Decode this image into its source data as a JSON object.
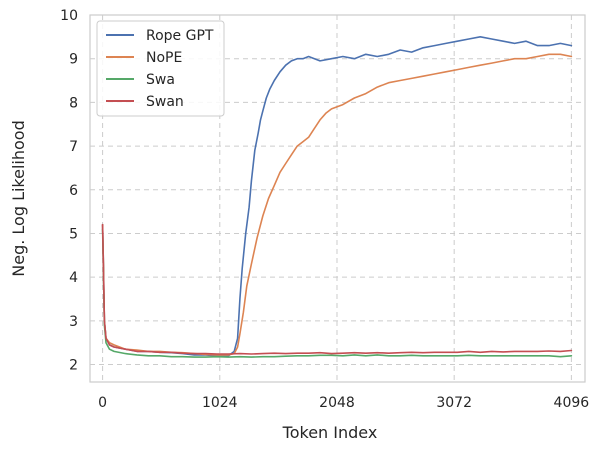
{
  "chart_data": {
    "type": "line",
    "title": "",
    "xlabel": "Token Index",
    "ylabel": "Neg. Log Likelihood",
    "xlim": [
      -110,
      4215
    ],
    "ylim": [
      1.6,
      10.0
    ],
    "xticks": [
      0,
      1024,
      2048,
      3072,
      4096
    ],
    "xtick_labels": [
      "0",
      "1024",
      "2048",
      "3072",
      "4096"
    ],
    "yticks": [
      2,
      3,
      4,
      5,
      6,
      7,
      8,
      9,
      10
    ],
    "ytick_labels": [
      "2",
      "3",
      "4",
      "5",
      "6",
      "7",
      "8",
      "9",
      "10"
    ],
    "grid": true,
    "grid_style": "dashed",
    "legend_position": "upper-left",
    "series": [
      {
        "name": "Rope GPT",
        "color": "#4c72b0",
        "x": [
          0,
          8,
          16,
          30,
          60,
          100,
          200,
          300,
          400,
          500,
          600,
          700,
          800,
          900,
          1000,
          1100,
          1150,
          1180,
          1200,
          1220,
          1250,
          1280,
          1300,
          1330,
          1360,
          1380,
          1400,
          1430,
          1460,
          1500,
          1550,
          1600,
          1650,
          1700,
          1750,
          1800,
          1900,
          2000,
          2100,
          2200,
          2300,
          2400,
          2500,
          2600,
          2700,
          2800,
          2900,
          3000,
          3100,
          3200,
          3300,
          3400,
          3500,
          3600,
          3700,
          3800,
          3900,
          4000,
          4096
        ],
        "y": [
          5.2,
          4.2,
          3.0,
          2.6,
          2.45,
          2.4,
          2.35,
          2.3,
          2.3,
          2.28,
          2.27,
          2.25,
          2.22,
          2.22,
          2.2,
          2.2,
          2.3,
          2.6,
          3.5,
          4.2,
          5.0,
          5.6,
          6.2,
          6.9,
          7.3,
          7.6,
          7.8,
          8.1,
          8.3,
          8.5,
          8.7,
          8.85,
          8.95,
          9.0,
          9.0,
          9.05,
          8.95,
          9.0,
          9.05,
          9.0,
          9.1,
          9.05,
          9.1,
          9.2,
          9.15,
          9.25,
          9.3,
          9.35,
          9.4,
          9.45,
          9.5,
          9.45,
          9.4,
          9.35,
          9.4,
          9.3,
          9.3,
          9.35,
          9.3
        ]
      },
      {
        "name": "NoPE",
        "color": "#dd8452",
        "x": [
          0,
          8,
          16,
          30,
          60,
          100,
          200,
          300,
          400,
          500,
          600,
          700,
          800,
          900,
          1000,
          1100,
          1150,
          1180,
          1200,
          1230,
          1260,
          1300,
          1350,
          1400,
          1450,
          1500,
          1550,
          1600,
          1650,
          1700,
          1750,
          1800,
          1850,
          1900,
          1950,
          2000,
          2100,
          2200,
          2300,
          2400,
          2500,
          2600,
          2700,
          2800,
          2900,
          3000,
          3100,
          3200,
          3300,
          3400,
          3500,
          3600,
          3700,
          3800,
          3900,
          4000,
          4096
        ],
        "y": [
          5.2,
          4.2,
          3.0,
          2.6,
          2.5,
          2.45,
          2.35,
          2.33,
          2.3,
          2.3,
          2.28,
          2.27,
          2.25,
          2.23,
          2.22,
          2.22,
          2.25,
          2.4,
          2.7,
          3.2,
          3.8,
          4.3,
          4.9,
          5.4,
          5.8,
          6.1,
          6.4,
          6.6,
          6.8,
          7.0,
          7.1,
          7.2,
          7.4,
          7.6,
          7.75,
          7.85,
          7.95,
          8.1,
          8.2,
          8.35,
          8.45,
          8.5,
          8.55,
          8.6,
          8.65,
          8.7,
          8.75,
          8.8,
          8.85,
          8.9,
          8.95,
          9.0,
          9.0,
          9.05,
          9.1,
          9.1,
          9.05
        ]
      },
      {
        "name": "Swa",
        "color": "#55a868",
        "x": [
          0,
          8,
          16,
          30,
          60,
          100,
          200,
          300,
          400,
          500,
          600,
          700,
          800,
          900,
          1000,
          1100,
          1200,
          1300,
          1400,
          1500,
          1600,
          1700,
          1800,
          1900,
          2000,
          2100,
          2200,
          2300,
          2400,
          2500,
          2600,
          2700,
          2800,
          2900,
          3000,
          3100,
          3200,
          3300,
          3400,
          3500,
          3600,
          3700,
          3800,
          3900,
          4000,
          4096
        ],
        "y": [
          5.1,
          4.0,
          2.9,
          2.5,
          2.35,
          2.3,
          2.25,
          2.22,
          2.2,
          2.2,
          2.18,
          2.18,
          2.17,
          2.17,
          2.18,
          2.17,
          2.18,
          2.17,
          2.18,
          2.18,
          2.19,
          2.2,
          2.2,
          2.21,
          2.21,
          2.2,
          2.22,
          2.2,
          2.22,
          2.2,
          2.2,
          2.21,
          2.2,
          2.2,
          2.2,
          2.2,
          2.21,
          2.2,
          2.2,
          2.2,
          2.2,
          2.2,
          2.2,
          2.2,
          2.18,
          2.2
        ]
      },
      {
        "name": "Swan",
        "color": "#c44e52",
        "x": [
          0,
          8,
          16,
          30,
          60,
          100,
          200,
          300,
          400,
          500,
          600,
          700,
          800,
          900,
          1000,
          1100,
          1200,
          1300,
          1400,
          1500,
          1600,
          1700,
          1800,
          1900,
          2000,
          2100,
          2200,
          2300,
          2400,
          2500,
          2600,
          2700,
          2800,
          2900,
          3000,
          3100,
          3200,
          3300,
          3400,
          3500,
          3600,
          3700,
          3800,
          3900,
          4000,
          4096
        ],
        "y": [
          5.2,
          4.1,
          3.0,
          2.6,
          2.45,
          2.4,
          2.35,
          2.3,
          2.3,
          2.28,
          2.28,
          2.26,
          2.25,
          2.25,
          2.24,
          2.24,
          2.25,
          2.24,
          2.25,
          2.26,
          2.25,
          2.26,
          2.26,
          2.27,
          2.25,
          2.26,
          2.27,
          2.26,
          2.27,
          2.26,
          2.27,
          2.28,
          2.27,
          2.28,
          2.28,
          2.28,
          2.3,
          2.28,
          2.3,
          2.29,
          2.3,
          2.3,
          2.3,
          2.31,
          2.3,
          2.32
        ]
      }
    ]
  }
}
